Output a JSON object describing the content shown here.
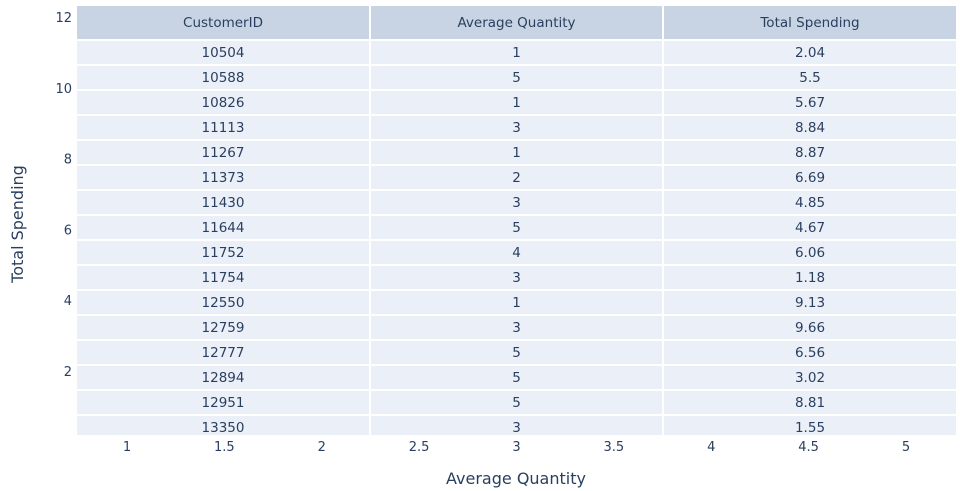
{
  "chart_data": {
    "type": "table",
    "xlabel": "Average Quantity",
    "ylabel": "Total Spending",
    "x_ticks": [
      "1",
      "1.5",
      "2",
      "2.5",
      "3",
      "3.5",
      "4",
      "4.5",
      "5"
    ],
    "y_ticks": [
      "2",
      "4",
      "6",
      "8",
      "10",
      "12"
    ],
    "columns": [
      "CustomerID",
      "Average Quantity",
      "Total Spending"
    ],
    "rows": [
      [
        "10504",
        "1",
        "2.04"
      ],
      [
        "10588",
        "5",
        "5.5"
      ],
      [
        "10826",
        "1",
        "5.67"
      ],
      [
        "11113",
        "3",
        "8.84"
      ],
      [
        "11267",
        "1",
        "8.87"
      ],
      [
        "11373",
        "2",
        "6.69"
      ],
      [
        "11430",
        "3",
        "4.85"
      ],
      [
        "11644",
        "5",
        "4.67"
      ],
      [
        "11752",
        "4",
        "6.06"
      ],
      [
        "11754",
        "3",
        "1.18"
      ],
      [
        "12550",
        "1",
        "9.13"
      ],
      [
        "12759",
        "3",
        "9.66"
      ],
      [
        "12777",
        "5",
        "6.56"
      ],
      [
        "12894",
        "5",
        "3.02"
      ],
      [
        "12951",
        "5",
        "8.81"
      ],
      [
        "13350",
        "3",
        "1.55"
      ]
    ],
    "header_color": "#c8d4e3",
    "cell_color": "#ebf0f8",
    "text_color": "#2a3f5f"
  }
}
